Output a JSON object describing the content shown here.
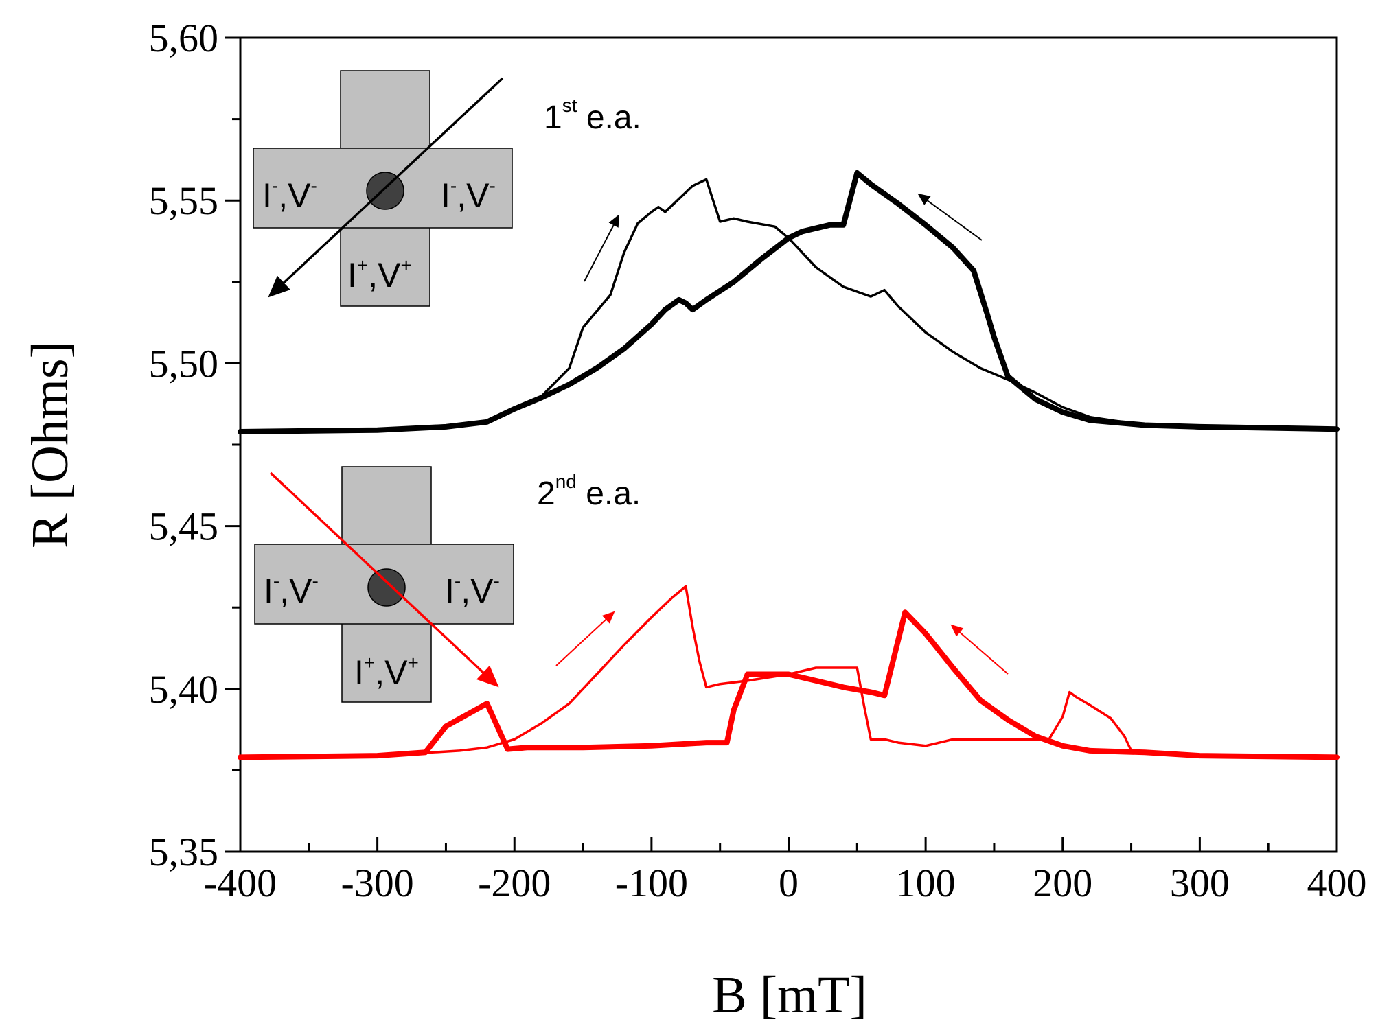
{
  "chart_data": {
    "type": "line",
    "title": "",
    "xlabel": "B [mT]",
    "ylabel": "R [Ohms]",
    "xlim": [
      -400,
      400
    ],
    "ylim": [
      5.35,
      5.6
    ],
    "xticks": [
      -400,
      -300,
      -200,
      -100,
      0,
      100,
      200,
      300,
      400
    ],
    "xtick_labels": [
      "-400",
      "-300",
      "-200",
      "-100",
      "0",
      "100",
      "200",
      "300",
      "400"
    ],
    "yticks": [
      5.35,
      5.4,
      5.45,
      5.5,
      5.55,
      5.6
    ],
    "ytick_labels": [
      "5,35",
      "5,40",
      "5,45",
      "5,50",
      "5,55",
      "5,60"
    ],
    "grid": false,
    "series": [
      {
        "name": "1st e.a. sweep up",
        "color": "#000000",
        "weight": "thin",
        "x": [
          -400,
          -300,
          -250,
          -220,
          -200,
          -180,
          -160,
          -150,
          -140,
          -130,
          -120,
          -110,
          -100,
          -95,
          -90,
          -80,
          -70,
          -60,
          -50,
          -40,
          -30,
          -10,
          0,
          20,
          40,
          60,
          70,
          80,
          100,
          120,
          140,
          160,
          180,
          200,
          220,
          260,
          300,
          350,
          400
        ],
        "y": [
          5.479,
          5.4795,
          5.4805,
          5.482,
          5.4855,
          5.49,
          5.4985,
          5.511,
          5.516,
          5.521,
          5.534,
          5.543,
          5.5465,
          5.548,
          5.5465,
          5.5505,
          5.5545,
          5.5565,
          5.5435,
          5.5445,
          5.5435,
          5.542,
          5.5385,
          5.5295,
          5.5235,
          5.5205,
          5.5225,
          5.5175,
          5.5095,
          5.5035,
          5.4985,
          5.495,
          5.491,
          5.4865,
          5.4835,
          5.481,
          5.48,
          5.4798,
          5.4798
        ]
      },
      {
        "name": "1st e.a. sweep down",
        "color": "#000000",
        "weight": "thick",
        "x": [
          -400,
          -300,
          -250,
          -220,
          -200,
          -180,
          -160,
          -140,
          -120,
          -100,
          -90,
          -80,
          -75,
          -70,
          -60,
          -40,
          -20,
          0,
          10,
          30,
          40,
          50,
          60,
          80,
          100,
          120,
          135,
          145,
          150,
          160,
          180,
          200,
          220,
          260,
          300,
          400
        ],
        "y": [
          5.479,
          5.4795,
          5.4805,
          5.482,
          5.486,
          5.4895,
          5.4935,
          5.4985,
          5.5045,
          5.512,
          5.5165,
          5.5195,
          5.5185,
          5.5165,
          5.5195,
          5.525,
          5.532,
          5.5385,
          5.5405,
          5.5425,
          5.5425,
          5.5585,
          5.555,
          5.549,
          5.5425,
          5.5355,
          5.5285,
          5.515,
          5.508,
          5.496,
          5.489,
          5.485,
          5.4825,
          5.481,
          5.4805,
          5.4798
        ]
      },
      {
        "name": "2nd e.a. sweep up",
        "color": "#ff0000",
        "weight": "thin",
        "x": [
          -400,
          -300,
          -260,
          -240,
          -220,
          -200,
          -180,
          -160,
          -140,
          -120,
          -100,
          -85,
          -75,
          -70,
          -65,
          -60,
          -50,
          -40,
          -30,
          0,
          20,
          40,
          50,
          55,
          60,
          70,
          80,
          100,
          110,
          120,
          150,
          190,
          200,
          205,
          210,
          220,
          235,
          245,
          250,
          260,
          300,
          400
        ],
        "y": [
          5.379,
          5.3795,
          5.3805,
          5.381,
          5.382,
          5.3845,
          5.3895,
          5.3955,
          5.4045,
          5.4135,
          5.422,
          5.428,
          5.4315,
          5.419,
          5.4085,
          5.4005,
          5.4015,
          5.402,
          5.4025,
          5.4045,
          5.4065,
          5.4065,
          5.4065,
          5.395,
          5.3845,
          5.3845,
          5.3835,
          5.3825,
          5.3835,
          5.3845,
          5.3845,
          5.3845,
          5.3915,
          5.399,
          5.3975,
          5.395,
          5.391,
          5.3855,
          5.381,
          5.3805,
          5.3795,
          5.379
        ]
      },
      {
        "name": "2nd e.a. sweep down",
        "color": "#ff0000",
        "weight": "thick",
        "x": [
          -400,
          -300,
          -265,
          -250,
          -220,
          -205,
          -190,
          -150,
          -100,
          -60,
          -45,
          -40,
          -30,
          0,
          20,
          40,
          60,
          70,
          85,
          100,
          120,
          140,
          160,
          180,
          200,
          220,
          260,
          300,
          400
        ],
        "y": [
          5.379,
          5.3795,
          5.3805,
          5.3885,
          5.3955,
          5.3815,
          5.382,
          5.382,
          5.3825,
          5.3835,
          5.3835,
          5.3935,
          5.4045,
          5.4045,
          5.4025,
          5.4005,
          5.399,
          5.398,
          5.4235,
          5.417,
          5.4065,
          5.3965,
          5.3905,
          5.3855,
          5.3825,
          5.381,
          5.3805,
          5.3795,
          5.379
        ]
      }
    ],
    "annotations": {
      "label_1st": {
        "main": "1",
        "sup": "st",
        "rest": " e.a.",
        "color": "#000000"
      },
      "label_2nd": {
        "main": "2",
        "sup": "nd",
        "rest": " e.a.",
        "color": "#ff0000"
      },
      "device_top": {
        "left": {
          "a": "I",
          "a_sup": "-",
          "b": ",V",
          "b_sup": "-"
        },
        "right": {
          "a": "I",
          "a_sup": "-",
          "b": ",V",
          "b_sup": "-"
        },
        "bottom": {
          "a": "I",
          "a_sup": "+",
          "b": ",V",
          "b_sup": "+"
        }
      },
      "device_bottom": {
        "left": {
          "a": "I",
          "a_sup": "-",
          "b": ",V",
          "b_sup": "-"
        },
        "right": {
          "a": "I",
          "a_sup": "-",
          "b": ",V",
          "b_sup": "-"
        },
        "bottom": {
          "a": "I",
          "a_sup": "+",
          "b": ",V",
          "b_sup": "+"
        }
      }
    }
  }
}
